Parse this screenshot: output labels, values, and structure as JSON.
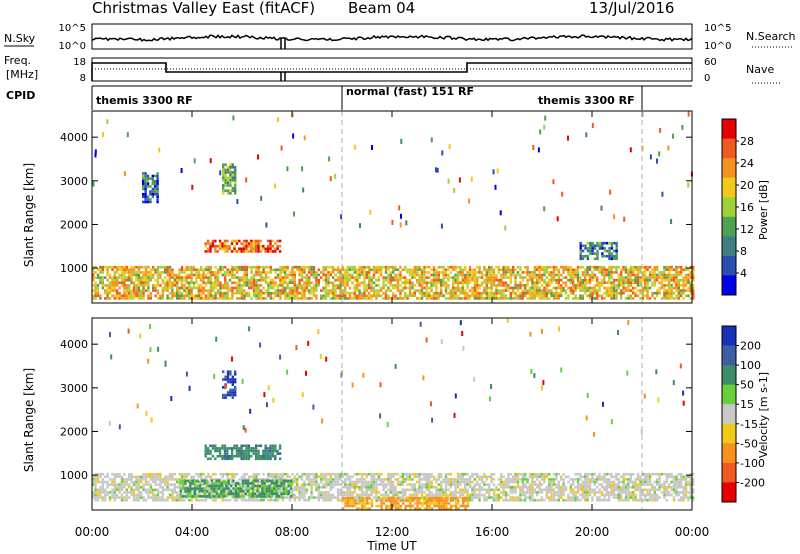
{
  "header": {
    "station": "Christmas Valley East (fitACF)",
    "beam": "Beam 04",
    "date": "13/Jul/2016"
  },
  "status_panels": {
    "nsky_label": "N.Sky",
    "nsearch_label": "N.Search",
    "freq_label_1": "Freq.",
    "freq_label_2": "[MHz]",
    "nave_label": "Nave",
    "cpid_label": "CPID",
    "nsky_ticks": [
      "10^5",
      "10^0"
    ],
    "nsearch_ticks": [
      "10^5",
      "10^0"
    ],
    "freq_ticks": [
      "18",
      "8"
    ],
    "nave_ticks": [
      "60",
      "0"
    ],
    "cpid_segments": [
      {
        "label": "themis 3300 RF",
        "start_hour": 0,
        "end_hour": 10
      },
      {
        "label": "normal (fast) 151 RF",
        "start_hour": 10,
        "end_hour": 22
      },
      {
        "label": "themis 3300 RF",
        "start_hour": 22,
        "end_hour": 24
      }
    ]
  },
  "chart_data": [
    {
      "type": "heatmap",
      "name": "power",
      "ylabel": "Slant Range [km]",
      "ylim": [
        200,
        4600
      ],
      "yticks": [
        "1000",
        "2000",
        "3000",
        "4000"
      ],
      "ytick_values": [
        1000,
        2000,
        3000,
        4000
      ],
      "xlim_hours": [
        0,
        24
      ],
      "colorbar": {
        "label": "Power [dB]",
        "ticks": [
          "4",
          "8",
          "12",
          "16",
          "20",
          "24",
          "28"
        ],
        "tick_values": [
          4,
          8,
          12,
          16,
          20,
          24,
          28
        ],
        "range": [
          0,
          32
        ],
        "colors": [
          "#0000e6",
          "#2a4fb0",
          "#3f7f84",
          "#4fa04f",
          "#9fd23a",
          "#f2c81a",
          "#f6921e",
          "#f05a1e",
          "#e60000"
        ]
      },
      "regions": [
        {
          "hour_start": 0.0,
          "hour_end": 24.0,
          "range_start": 300,
          "range_end": 1050,
          "level": 20
        },
        {
          "hour_start": 4.5,
          "hour_end": 7.5,
          "range_start": 1400,
          "range_end": 1650,
          "level": 26
        },
        {
          "hour_start": 5.2,
          "hour_end": 5.7,
          "range_start": 2700,
          "range_end": 3400,
          "level": 14
        },
        {
          "hour_start": 2.0,
          "hour_end": 2.6,
          "range_start": 2500,
          "range_end": 3200,
          "level": 8
        },
        {
          "hour_start": 19.5,
          "hour_end": 21.0,
          "range_start": 1200,
          "range_end": 1600,
          "level": 9
        }
      ]
    },
    {
      "type": "heatmap",
      "name": "velocity",
      "ylabel": "Slant Range [km]",
      "ylim": [
        200,
        4600
      ],
      "yticks": [
        "1000",
        "2000",
        "3000",
        "4000"
      ],
      "ytick_values": [
        1000,
        2000,
        3000,
        4000
      ],
      "xlim_hours": [
        0,
        24
      ],
      "colorbar": {
        "label": "Velocity [m s-1]",
        "ticks": [
          "200",
          "100",
          "50",
          "15",
          "-15",
          "-50",
          "-100",
          "-200"
        ],
        "tick_values": [
          200,
          100,
          50,
          15,
          -15,
          -50,
          -100,
          -200
        ],
        "colors": [
          "#1a2fb8",
          "#3b5fa0",
          "#3d8c6a",
          "#6ad03a",
          "#c8c8c8",
          "#f2c81a",
          "#f6921e",
          "#f05a1e",
          "#e60000"
        ]
      },
      "regions": [
        {
          "hour_start": 0.0,
          "hour_end": 24.0,
          "range_start": 400,
          "range_end": 1050,
          "level": 0
        },
        {
          "hour_start": 4.5,
          "hour_end": 7.5,
          "range_start": 1400,
          "range_end": 1700,
          "level": 60
        },
        {
          "hour_start": 5.2,
          "hour_end": 5.7,
          "range_start": 2800,
          "range_end": 3400,
          "level": 150
        },
        {
          "hour_start": 3.5,
          "hour_end": 8.0,
          "range_start": 500,
          "range_end": 900,
          "level": 40
        },
        {
          "hour_start": 10.0,
          "hour_end": 15.0,
          "range_start": 250,
          "range_end": 500,
          "level": -40
        }
      ]
    }
  ],
  "xaxis": {
    "label": "Time UT",
    "ticks": [
      "00:00",
      "04:00",
      "08:00",
      "12:00",
      "16:00",
      "20:00",
      "00:00"
    ],
    "tick_hours": [
      0,
      4,
      8,
      12,
      16,
      20,
      24
    ]
  }
}
